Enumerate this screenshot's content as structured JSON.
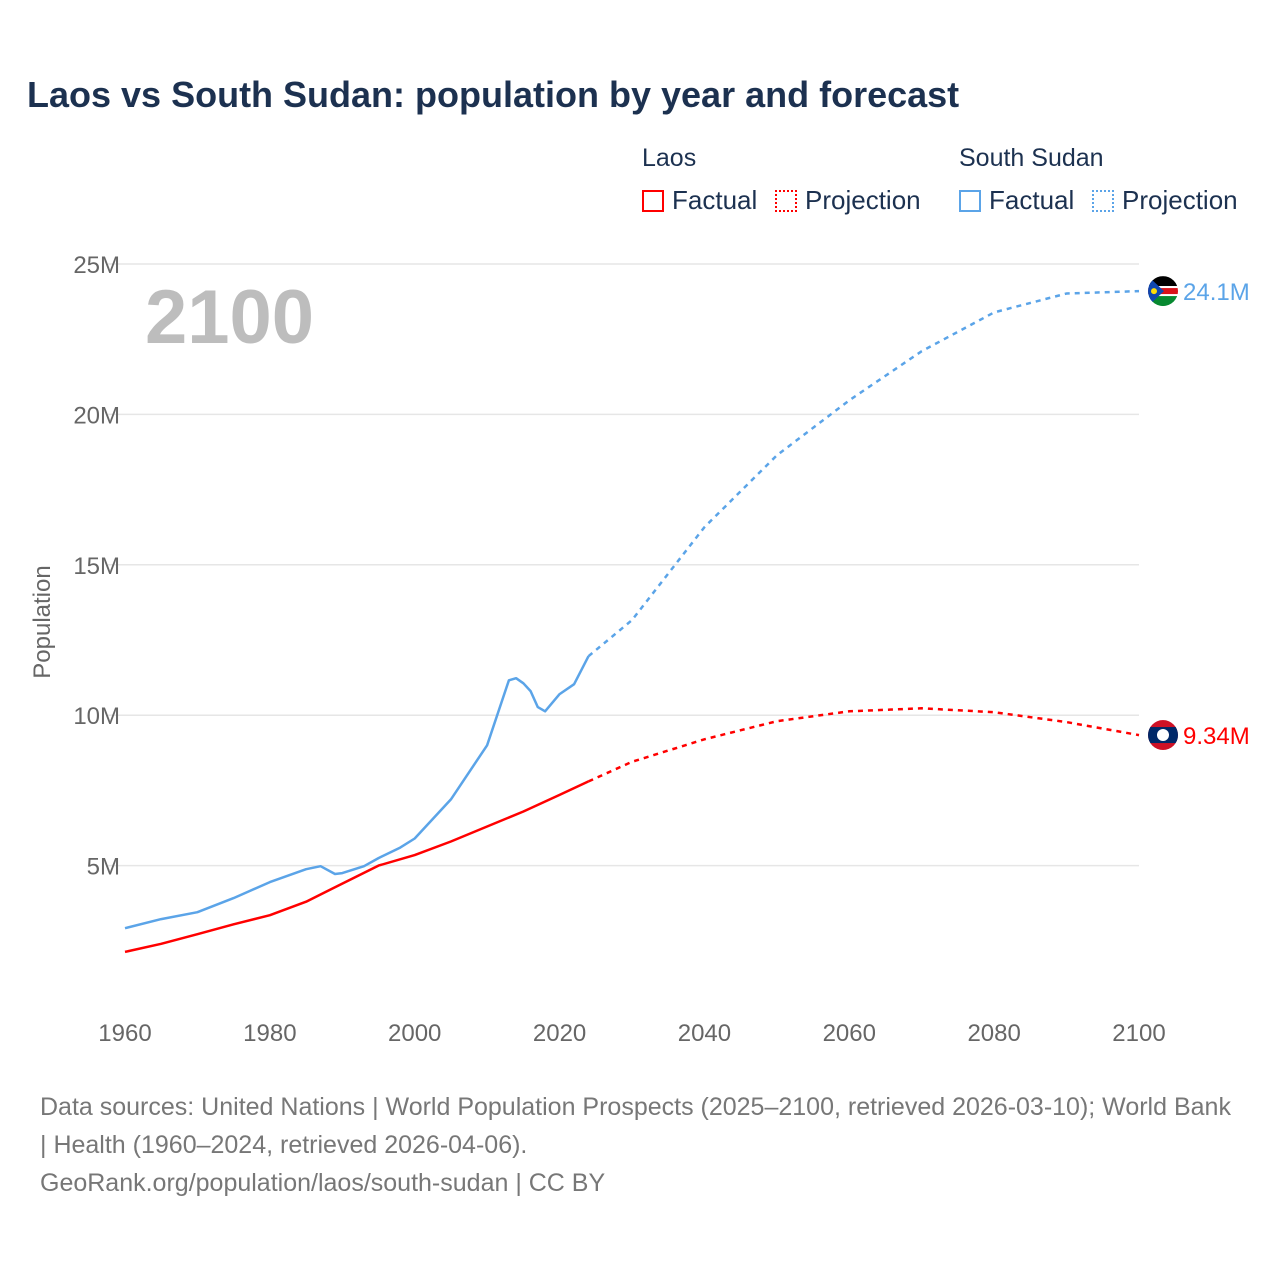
{
  "title": "Laos vs South Sudan: population by year and forecast",
  "legend": {
    "groups": [
      {
        "name": "Laos",
        "factual": "Factual",
        "projection": "Projection",
        "color": "#ff0000"
      },
      {
        "name": "South Sudan",
        "factual": "Factual",
        "projection": "Projection",
        "color": "#5ba4e8"
      }
    ]
  },
  "year_watermark": "2100",
  "sources": "Data sources: United Nations | World Population Prospects (2025–2100, retrieved 2026-03-10); World Bank | Health (1960–2024, retrieved 2026-04-06).",
  "credit": "GeoRank.org/population/laos/south-sudan | CC BY",
  "chart_data": {
    "type": "line",
    "title": "Laos vs South Sudan: population by year and forecast",
    "xlabel": "",
    "ylabel": "Population",
    "xlim": [
      1960,
      2100
    ],
    "ylim": [
      0,
      25
    ],
    "x_ticks": [
      "1960",
      "1980",
      "2000",
      "2020",
      "2040",
      "2060",
      "2080",
      "2100"
    ],
    "y_ticks": [
      {
        "v": 5,
        "label": "5M"
      },
      {
        "v": 10,
        "label": "10M"
      },
      {
        "v": 15,
        "label": "15M"
      },
      {
        "v": 20,
        "label": "20M"
      },
      {
        "v": 25,
        "label": "25M"
      }
    ],
    "grid": true,
    "series": [
      {
        "name": "Laos",
        "color": "#ff0000",
        "end_label": "9.34M",
        "factual": [
          [
            1960,
            2.13
          ],
          [
            1965,
            2.4
          ],
          [
            1970,
            2.72
          ],
          [
            1975,
            3.05
          ],
          [
            1980,
            3.35
          ],
          [
            1985,
            3.8
          ],
          [
            1990,
            4.4
          ],
          [
            1995,
            5.0
          ],
          [
            2000,
            5.35
          ],
          [
            2005,
            5.8
          ],
          [
            2010,
            6.3
          ],
          [
            2015,
            6.8
          ],
          [
            2020,
            7.35
          ],
          [
            2024,
            7.8
          ]
        ],
        "projection": [
          [
            2024,
            7.8
          ],
          [
            2030,
            8.45
          ],
          [
            2040,
            9.2
          ],
          [
            2050,
            9.8
          ],
          [
            2060,
            10.13
          ],
          [
            2070,
            10.23
          ],
          [
            2080,
            10.1
          ],
          [
            2090,
            9.77
          ],
          [
            2100,
            9.34
          ]
        ]
      },
      {
        "name": "South Sudan",
        "color": "#5ba4e8",
        "end_label": "24.1M",
        "factual": [
          [
            1960,
            2.92
          ],
          [
            1965,
            3.22
          ],
          [
            1970,
            3.45
          ],
          [
            1975,
            3.92
          ],
          [
            1980,
            4.45
          ],
          [
            1985,
            4.88
          ],
          [
            1987,
            4.98
          ],
          [
            1989,
            4.72
          ],
          [
            1990,
            4.75
          ],
          [
            1993,
            4.98
          ],
          [
            1995,
            5.25
          ],
          [
            1998,
            5.6
          ],
          [
            2000,
            5.9
          ],
          [
            2005,
            7.2
          ],
          [
            2010,
            9.0
          ],
          [
            2013,
            11.16
          ],
          [
            2014,
            11.23
          ],
          [
            2015,
            11.06
          ],
          [
            2016,
            10.8
          ],
          [
            2017,
            10.27
          ],
          [
            2018,
            10.13
          ],
          [
            2020,
            10.7
          ],
          [
            2022,
            11.03
          ],
          [
            2024,
            11.96
          ]
        ],
        "projection": [
          [
            2024,
            11.96
          ],
          [
            2030,
            13.16
          ],
          [
            2040,
            16.25
          ],
          [
            2050,
            18.64
          ],
          [
            2060,
            20.47
          ],
          [
            2070,
            22.1
          ],
          [
            2080,
            23.39
          ],
          [
            2090,
            24.02
          ],
          [
            2100,
            24.1
          ]
        ]
      }
    ]
  }
}
